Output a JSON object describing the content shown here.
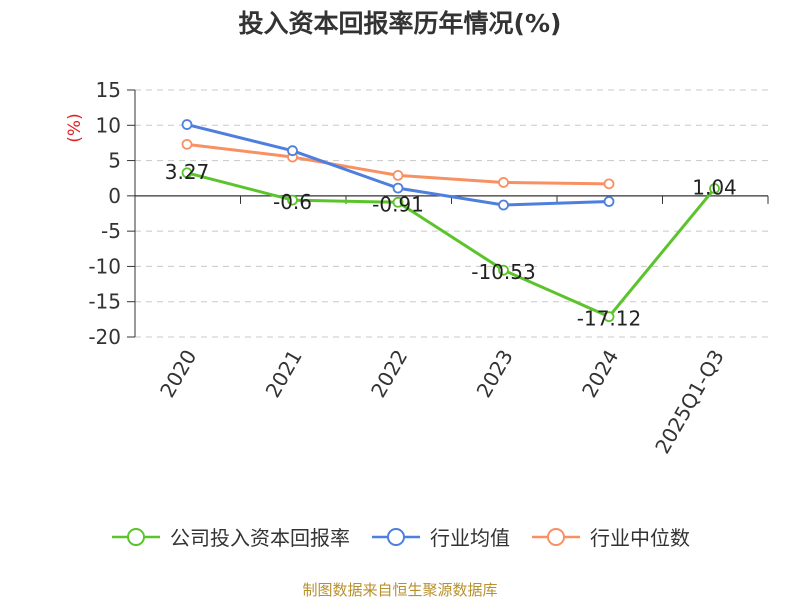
{
  "chart_data": {
    "type": "line",
    "title": "投入资本回报率历年情况(%)",
    "ylabel": "(%)",
    "ylim": [
      -20,
      15
    ],
    "yticks": [
      15,
      10,
      5,
      0,
      -5,
      -10,
      -15,
      -20
    ],
    "categories": [
      "2020",
      "2021",
      "2022",
      "2023",
      "2024",
      "2025Q1-Q3"
    ],
    "grid": true,
    "legend_position": "bottom",
    "series": [
      {
        "name": "公司投入资本回报率",
        "color": "#5bc42a",
        "values": [
          3.27,
          -0.6,
          -0.91,
          -10.53,
          -17.12,
          1.04
        ],
        "labels": [
          "3.27",
          "-0.6",
          "-0.91",
          "-10.53",
          "-17.12",
          "1.04"
        ]
      },
      {
        "name": "行业均值",
        "color": "#4f7fde",
        "values": [
          10.1,
          6.4,
          1.1,
          -1.3,
          -0.8,
          null
        ]
      },
      {
        "name": "行业中位数",
        "color": "#f79163",
        "values": [
          7.3,
          5.5,
          2.9,
          1.9,
          1.7,
          null
        ]
      }
    ]
  },
  "source": "制图数据来自恒生聚源数据库"
}
